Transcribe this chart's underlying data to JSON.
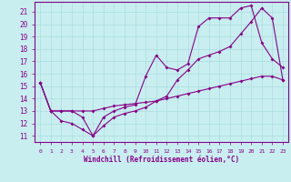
{
  "xlabel": "Windchill (Refroidissement éolien,°C)",
  "bg_color": "#c8eef0",
  "grid_color": "#aadddd",
  "line_color": "#880088",
  "xlim": [
    -0.5,
    23.5
  ],
  "ylim": [
    10.5,
    21.8
  ],
  "xticks": [
    0,
    1,
    2,
    3,
    4,
    5,
    6,
    7,
    8,
    9,
    10,
    11,
    12,
    13,
    14,
    15,
    16,
    17,
    18,
    19,
    20,
    21,
    22,
    23
  ],
  "yticks": [
    11,
    12,
    13,
    14,
    15,
    16,
    17,
    18,
    19,
    20,
    21
  ],
  "line1_x": [
    0,
    1,
    2,
    3,
    4,
    5,
    6,
    7,
    8,
    9,
    10,
    11,
    12,
    13,
    14,
    15,
    16,
    17,
    18,
    19,
    20,
    21,
    22,
    23
  ],
  "line1_y": [
    15.3,
    13.0,
    13.0,
    13.0,
    12.5,
    11.0,
    11.8,
    12.5,
    12.8,
    13.0,
    13.3,
    13.8,
    14.2,
    15.5,
    16.3,
    17.2,
    17.5,
    17.8,
    18.2,
    19.2,
    20.2,
    21.3,
    20.5,
    15.5
  ],
  "line2_x": [
    0,
    1,
    2,
    3,
    4,
    5,
    6,
    7,
    8,
    9,
    10,
    11,
    12,
    13,
    14,
    15,
    16,
    17,
    18,
    19,
    20,
    21,
    22,
    23
  ],
  "line2_y": [
    15.3,
    13.0,
    12.2,
    12.0,
    11.5,
    11.0,
    12.5,
    13.0,
    13.3,
    13.5,
    15.8,
    17.5,
    16.5,
    16.3,
    16.8,
    19.8,
    20.5,
    20.5,
    20.5,
    21.3,
    21.5,
    18.5,
    17.2,
    16.5
  ],
  "line3_x": [
    0,
    1,
    2,
    3,
    4,
    5,
    6,
    7,
    8,
    9,
    10,
    11,
    12,
    13,
    14,
    15,
    16,
    17,
    18,
    19,
    20,
    21,
    22,
    23
  ],
  "line3_y": [
    15.3,
    13.0,
    13.0,
    13.0,
    13.0,
    13.0,
    13.2,
    13.4,
    13.5,
    13.6,
    13.7,
    13.8,
    14.0,
    14.2,
    14.4,
    14.6,
    14.8,
    15.0,
    15.2,
    15.4,
    15.6,
    15.8,
    15.8,
    15.5
  ]
}
